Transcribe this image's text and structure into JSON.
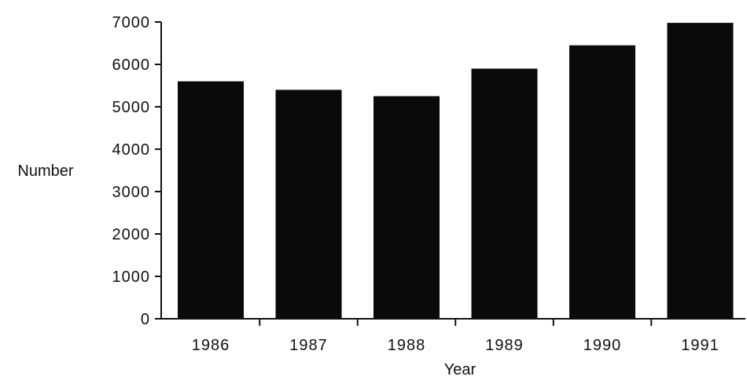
{
  "chart_data": {
    "type": "bar",
    "title": "",
    "xlabel": "Year",
    "ylabel": "Number",
    "categories": [
      "1986",
      "1987",
      "1988",
      "1989",
      "1990",
      "1991"
    ],
    "values": [
      5600,
      5400,
      5250,
      5900,
      6450,
      6980
    ],
    "ylim": [
      0,
      7000
    ],
    "yticks": [
      0,
      1000,
      2000,
      3000,
      4000,
      5000,
      6000,
      7000
    ],
    "grid": false,
    "legend": "none",
    "bar_color": "#0a0a0a"
  }
}
